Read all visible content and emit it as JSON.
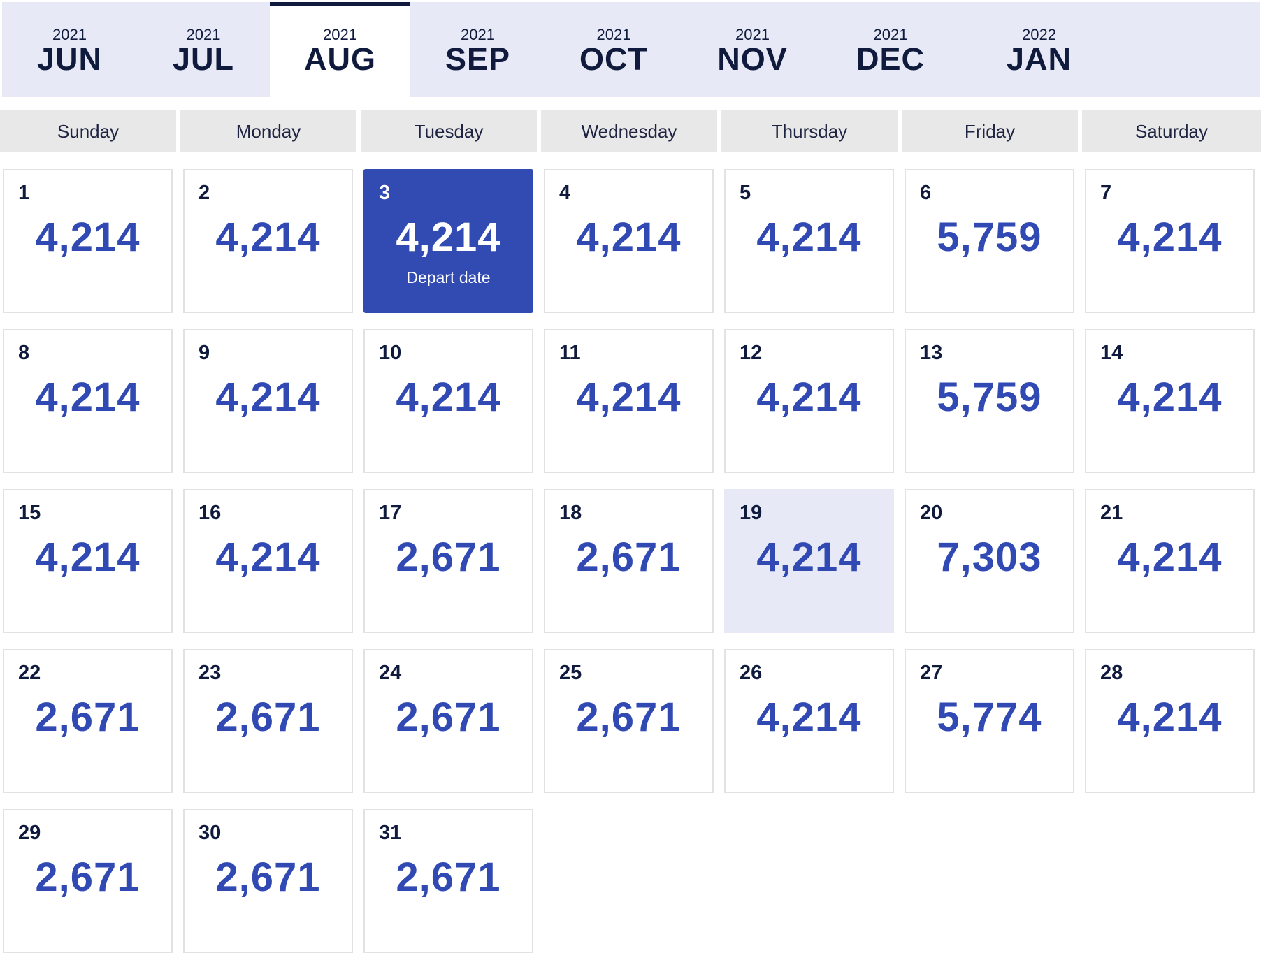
{
  "months": [
    {
      "year": "2021",
      "month": "JUN",
      "active": false
    },
    {
      "year": "2021",
      "month": "JUL",
      "active": false
    },
    {
      "year": "2021",
      "month": "AUG",
      "active": true
    },
    {
      "year": "2021",
      "month": "SEP",
      "active": false
    },
    {
      "year": "2021",
      "month": "OCT",
      "active": false
    },
    {
      "year": "2021",
      "month": "NOV",
      "active": false
    },
    {
      "year": "2021",
      "month": "DEC",
      "active": false
    },
    {
      "year": "2022",
      "month": "JAN",
      "active": false
    }
  ],
  "weekdays": [
    "Sunday",
    "Monday",
    "Tuesday",
    "Wednesday",
    "Thursday",
    "Friday",
    "Saturday"
  ],
  "calendar": {
    "first_weekday_index": 0,
    "days": [
      {
        "day": "1",
        "price": "4,214"
      },
      {
        "day": "2",
        "price": "4,214"
      },
      {
        "day": "3",
        "price": "4,214",
        "label": "Depart date",
        "state": "selected"
      },
      {
        "day": "4",
        "price": "4,214"
      },
      {
        "day": "5",
        "price": "4,214"
      },
      {
        "day": "6",
        "price": "5,759"
      },
      {
        "day": "7",
        "price": "4,214"
      },
      {
        "day": "8",
        "price": "4,214"
      },
      {
        "day": "9",
        "price": "4,214"
      },
      {
        "day": "10",
        "price": "4,214"
      },
      {
        "day": "11",
        "price": "4,214"
      },
      {
        "day": "12",
        "price": "4,214"
      },
      {
        "day": "13",
        "price": "5,759"
      },
      {
        "day": "14",
        "price": "4,214"
      },
      {
        "day": "15",
        "price": "4,214"
      },
      {
        "day": "16",
        "price": "4,214"
      },
      {
        "day": "17",
        "price": "2,671"
      },
      {
        "day": "18",
        "price": "2,671"
      },
      {
        "day": "19",
        "price": "4,214",
        "state": "hover"
      },
      {
        "day": "20",
        "price": "7,303"
      },
      {
        "day": "21",
        "price": "4,214"
      },
      {
        "day": "22",
        "price": "2,671"
      },
      {
        "day": "23",
        "price": "2,671"
      },
      {
        "day": "24",
        "price": "2,671"
      },
      {
        "day": "25",
        "price": "2,671"
      },
      {
        "day": "26",
        "price": "4,214"
      },
      {
        "day": "27",
        "price": "5,774"
      },
      {
        "day": "28",
        "price": "4,214"
      },
      {
        "day": "29",
        "price": "2,671"
      },
      {
        "day": "30",
        "price": "2,671"
      },
      {
        "day": "31",
        "price": "2,671"
      }
    ]
  },
  "colors": {
    "accent": "#314bb3",
    "price_text": "#3149b3",
    "dark_text": "#0f1a3c",
    "month_bar_bg": "#e7eaf6",
    "weekday_bg": "#e8e8e8",
    "cell_border": "#e2e2e2"
  }
}
